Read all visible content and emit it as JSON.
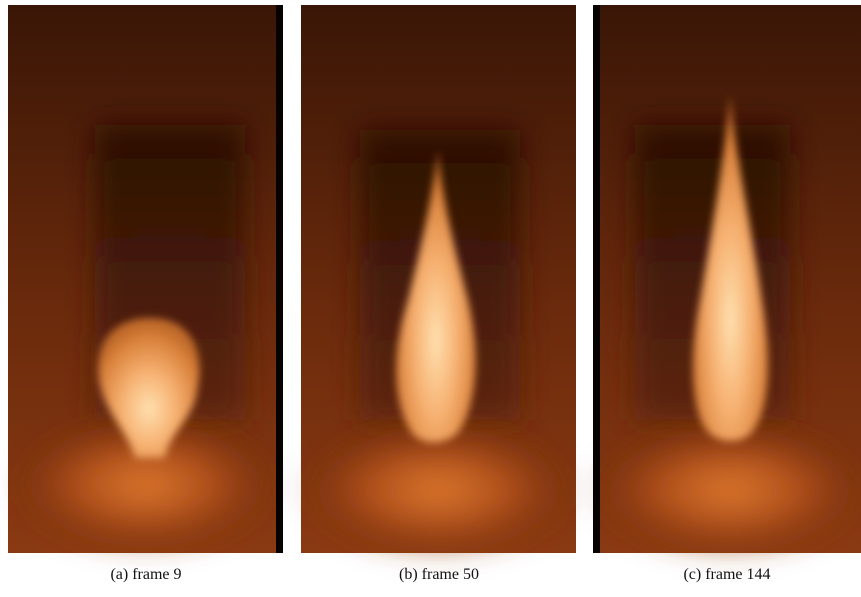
{
  "figure": {
    "panels": [
      {
        "caption": "(a)  frame 9"
      },
      {
        "caption": "(b)  frame 50"
      },
      {
        "caption": "(c)  frame 144"
      }
    ]
  }
}
